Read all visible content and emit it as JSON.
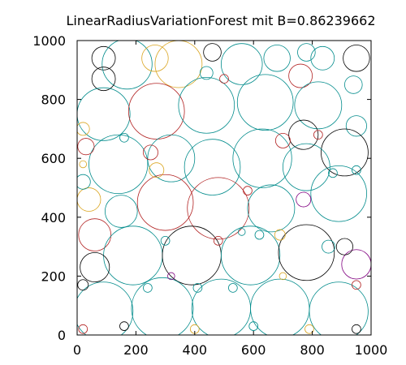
{
  "chart_data": {
    "type": "scatter",
    "subtype": "circle-packing",
    "title": "LinearRadiusVariationForest mit B=0.86239662",
    "xlabel": "",
    "ylabel": "",
    "xlim": [
      0,
      1000
    ],
    "ylim": [
      0,
      1000
    ],
    "xticks": [
      0,
      200,
      400,
      600,
      800,
      1000
    ],
    "yticks": [
      0,
      200,
      400,
      600,
      800,
      1000
    ],
    "xtick_labels": [
      "0",
      "200",
      "400",
      "600",
      "800",
      "1000"
    ],
    "ytick_labels": [
      "0",
      "200",
      "400",
      "600",
      "800",
      "1000"
    ],
    "grid": false,
    "legend": "none",
    "circle_legend": "x, y = center (data units), r = radius (data units), color = outline color",
    "circles": [
      {
        "x": 90,
        "y": 940,
        "r": 40,
        "color": "#000000"
      },
      {
        "x": 170,
        "y": 920,
        "r": 85,
        "color": "#008b8b"
      },
      {
        "x": 265,
        "y": 940,
        "r": 45,
        "color": "#daa520"
      },
      {
        "x": 345,
        "y": 920,
        "r": 80,
        "color": "#daa520"
      },
      {
        "x": 460,
        "y": 960,
        "r": 30,
        "color": "#000000"
      },
      {
        "x": 560,
        "y": 920,
        "r": 70,
        "color": "#008b8b"
      },
      {
        "x": 680,
        "y": 940,
        "r": 45,
        "color": "#008b8b"
      },
      {
        "x": 780,
        "y": 960,
        "r": 30,
        "color": "#008b8b"
      },
      {
        "x": 835,
        "y": 940,
        "r": 40,
        "color": "#008b8b"
      },
      {
        "x": 950,
        "y": 940,
        "r": 45,
        "color": "#000000"
      },
      {
        "x": 90,
        "y": 870,
        "r": 40,
        "color": "#000000"
      },
      {
        "x": 760,
        "y": 880,
        "r": 40,
        "color": "#b22222"
      },
      {
        "x": 940,
        "y": 850,
        "r": 30,
        "color": "#008b8b"
      },
      {
        "x": 90,
        "y": 750,
        "r": 90,
        "color": "#008b8b"
      },
      {
        "x": 270,
        "y": 760,
        "r": 95,
        "color": "#b22222"
      },
      {
        "x": 440,
        "y": 780,
        "r": 95,
        "color": "#008b8b"
      },
      {
        "x": 640,
        "y": 790,
        "r": 95,
        "color": "#008b8b"
      },
      {
        "x": 820,
        "y": 780,
        "r": 80,
        "color": "#008b8b"
      },
      {
        "x": 770,
        "y": 680,
        "r": 50,
        "color": "#000000"
      },
      {
        "x": 950,
        "y": 710,
        "r": 35,
        "color": "#008b8b"
      },
      {
        "x": 910,
        "y": 620,
        "r": 80,
        "color": "#000000"
      },
      {
        "x": 140,
        "y": 580,
        "r": 100,
        "color": "#008b8b"
      },
      {
        "x": 320,
        "y": 600,
        "r": 80,
        "color": "#008b8b"
      },
      {
        "x": 460,
        "y": 570,
        "r": 95,
        "color": "#008b8b"
      },
      {
        "x": 630,
        "y": 600,
        "r": 100,
        "color": "#008b8b"
      },
      {
        "x": 780,
        "y": 570,
        "r": 80,
        "color": "#008b8b"
      },
      {
        "x": 890,
        "y": 480,
        "r": 95,
        "color": "#008b8b"
      },
      {
        "x": 40,
        "y": 460,
        "r": 40,
        "color": "#daa520"
      },
      {
        "x": 150,
        "y": 420,
        "r": 55,
        "color": "#008b8b"
      },
      {
        "x": 300,
        "y": 450,
        "r": 95,
        "color": "#b22222"
      },
      {
        "x": 480,
        "y": 430,
        "r": 105,
        "color": "#b22222"
      },
      {
        "x": 660,
        "y": 430,
        "r": 80,
        "color": "#008b8b"
      },
      {
        "x": 60,
        "y": 340,
        "r": 55,
        "color": "#b22222"
      },
      {
        "x": 190,
        "y": 270,
        "r": 100,
        "color": "#008b8b"
      },
      {
        "x": 390,
        "y": 270,
        "r": 100,
        "color": "#000000"
      },
      {
        "x": 590,
        "y": 270,
        "r": 100,
        "color": "#008b8b"
      },
      {
        "x": 780,
        "y": 280,
        "r": 95,
        "color": "#000000"
      },
      {
        "x": 60,
        "y": 230,
        "r": 50,
        "color": "#000000"
      },
      {
        "x": 950,
        "y": 240,
        "r": 50,
        "color": "#800080"
      },
      {
        "x": 90,
        "y": 80,
        "r": 100,
        "color": "#008b8b"
      },
      {
        "x": 290,
        "y": 90,
        "r": 105,
        "color": "#008b8b"
      },
      {
        "x": 490,
        "y": 90,
        "r": 100,
        "color": "#008b8b"
      },
      {
        "x": 690,
        "y": 90,
        "r": 100,
        "color": "#008b8b"
      },
      {
        "x": 890,
        "y": 80,
        "r": 100,
        "color": "#008b8b"
      },
      {
        "x": 20,
        "y": 700,
        "r": 22,
        "color": "#daa520"
      },
      {
        "x": 30,
        "y": 640,
        "r": 28,
        "color": "#b22222"
      },
      {
        "x": 250,
        "y": 620,
        "r": 25,
        "color": "#b22222"
      },
      {
        "x": 270,
        "y": 560,
        "r": 25,
        "color": "#daa520"
      },
      {
        "x": 700,
        "y": 660,
        "r": 25,
        "color": "#b22222"
      },
      {
        "x": 770,
        "y": 460,
        "r": 25,
        "color": "#800080"
      },
      {
        "x": 20,
        "y": 520,
        "r": 25,
        "color": "#008b8b"
      },
      {
        "x": 440,
        "y": 890,
        "r": 22,
        "color": "#008b8b"
      },
      {
        "x": 855,
        "y": 300,
        "r": 22,
        "color": "#008b8b"
      },
      {
        "x": 910,
        "y": 300,
        "r": 28,
        "color": "#000000"
      },
      {
        "x": 300,
        "y": 320,
        "r": 15,
        "color": "#008b8b"
      },
      {
        "x": 480,
        "y": 320,
        "r": 15,
        "color": "#b22222"
      },
      {
        "x": 620,
        "y": 340,
        "r": 15,
        "color": "#008b8b"
      },
      {
        "x": 580,
        "y": 490,
        "r": 15,
        "color": "#b22222"
      },
      {
        "x": 160,
        "y": 670,
        "r": 15,
        "color": "#008b8b"
      },
      {
        "x": 20,
        "y": 580,
        "r": 12,
        "color": "#daa520"
      },
      {
        "x": 690,
        "y": 340,
        "r": 18,
        "color": "#daa520"
      },
      {
        "x": 820,
        "y": 680,
        "r": 15,
        "color": "#b22222"
      },
      {
        "x": 950,
        "y": 560,
        "r": 15,
        "color": "#008b8b"
      },
      {
        "x": 870,
        "y": 550,
        "r": 15,
        "color": "#008b8b"
      },
      {
        "x": 20,
        "y": 170,
        "r": 18,
        "color": "#000000"
      },
      {
        "x": 240,
        "y": 160,
        "r": 15,
        "color": "#008b8b"
      },
      {
        "x": 410,
        "y": 160,
        "r": 15,
        "color": "#008b8b"
      },
      {
        "x": 530,
        "y": 160,
        "r": 15,
        "color": "#008b8b"
      },
      {
        "x": 160,
        "y": 30,
        "r": 15,
        "color": "#000000"
      },
      {
        "x": 400,
        "y": 20,
        "r": 15,
        "color": "#daa520"
      },
      {
        "x": 600,
        "y": 30,
        "r": 15,
        "color": "#008b8b"
      },
      {
        "x": 790,
        "y": 20,
        "r": 15,
        "color": "#daa520"
      },
      {
        "x": 950,
        "y": 20,
        "r": 15,
        "color": "#000000"
      },
      {
        "x": 20,
        "y": 20,
        "r": 15,
        "color": "#b22222"
      },
      {
        "x": 500,
        "y": 870,
        "r": 15,
        "color": "#b22222"
      },
      {
        "x": 560,
        "y": 350,
        "r": 12,
        "color": "#008b8b"
      },
      {
        "x": 950,
        "y": 170,
        "r": 15,
        "color": "#b22222"
      },
      {
        "x": 320,
        "y": 200,
        "r": 12,
        "color": "#800080"
      },
      {
        "x": 700,
        "y": 200,
        "r": 12,
        "color": "#daa520"
      }
    ]
  }
}
